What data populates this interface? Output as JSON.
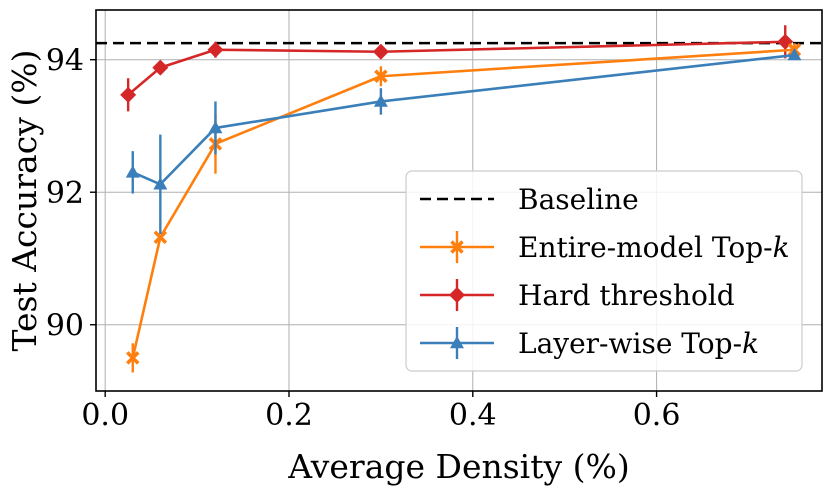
{
  "chart_data": {
    "type": "line",
    "xlabel": "Average Density (%)",
    "ylabel": "Test Accuracy (%)",
    "xlim": [
      -0.01,
      0.78
    ],
    "ylim": [
      89.0,
      94.75
    ],
    "grid": true,
    "legend_position": "bottom-right",
    "x_ticks": [
      0.0,
      0.2,
      0.4,
      0.6
    ],
    "x_tick_labels": [
      "0.0",
      "0.2",
      "0.4",
      "0.6"
    ],
    "y_ticks": [
      90,
      92,
      94
    ],
    "y_tick_labels": [
      "90",
      "92",
      "94"
    ],
    "baseline": {
      "name": "Baseline",
      "value": 94.25,
      "color": "#000000"
    },
    "series": [
      {
        "name": "Entire-model Top-",
        "name_suffix": "k",
        "color": "#ff7f0e",
        "marker": "x",
        "points": [
          {
            "x": 0.03,
            "y": 89.5,
            "err": 0.22
          },
          {
            "x": 0.06,
            "y": 91.32,
            "err": 0.0
          },
          {
            "x": 0.12,
            "y": 92.73,
            "err": 0.45
          },
          {
            "x": 0.3,
            "y": 93.75,
            "err": 0.15
          },
          {
            "x": 0.75,
            "y": 94.15,
            "err": 0.1
          }
        ]
      },
      {
        "name": "Hard threshold",
        "name_suffix": "",
        "color": "#d62728",
        "marker": "diamond",
        "points": [
          {
            "x": 0.025,
            "y": 93.47,
            "err": 0.25
          },
          {
            "x": 0.06,
            "y": 93.88,
            "err": 0.1
          },
          {
            "x": 0.12,
            "y": 94.15,
            "err": 0.12
          },
          {
            "x": 0.3,
            "y": 94.12,
            "err": 0.08
          },
          {
            "x": 0.74,
            "y": 94.27,
            "err": 0.25
          }
        ]
      },
      {
        "name": "Layer-wise Top-",
        "name_suffix": "k",
        "color": "#3a7fba",
        "marker": "triangle",
        "points": [
          {
            "x": 0.03,
            "y": 92.3,
            "err": 0.32
          },
          {
            "x": 0.06,
            "y": 92.12,
            "err": 0.75
          },
          {
            "x": 0.12,
            "y": 92.97,
            "err": 0.4
          },
          {
            "x": 0.3,
            "y": 93.37,
            "err": 0.2
          },
          {
            "x": 0.75,
            "y": 94.07,
            "err": 0.0
          }
        ]
      }
    ]
  }
}
